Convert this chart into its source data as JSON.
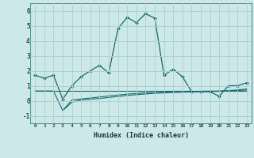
{
  "xlabel": "Humidex (Indice chaleur)",
  "background_color": "#cce8e8",
  "grid_color": "#aad0d0",
  "line_color": "#1a6b6b",
  "xlim": [
    -0.5,
    23.5
  ],
  "ylim": [
    -1.5,
    6.5
  ],
  "yticks": [
    -1,
    0,
    1,
    2,
    3,
    4,
    5,
    6
  ],
  "xticks": [
    0,
    1,
    2,
    3,
    4,
    5,
    6,
    7,
    8,
    9,
    10,
    11,
    12,
    13,
    14,
    15,
    16,
    17,
    18,
    19,
    20,
    21,
    22,
    23
  ],
  "line1_x": [
    0,
    1,
    2,
    3,
    4,
    5,
    6,
    7,
    8,
    9,
    10,
    11,
    12,
    13,
    14,
    15,
    16,
    17,
    18,
    19,
    20,
    21,
    22,
    23
  ],
  "line1_y": [
    1.7,
    1.5,
    1.7,
    0.1,
    1.0,
    1.6,
    2.0,
    2.35,
    1.85,
    4.8,
    5.55,
    5.2,
    5.8,
    5.5,
    1.7,
    2.1,
    1.6,
    0.6,
    0.6,
    0.6,
    0.3,
    1.0,
    1.0,
    1.2
  ],
  "line2_x": [
    0,
    1,
    2,
    3,
    4,
    5,
    6,
    7,
    8,
    9,
    10,
    11,
    12,
    13,
    14,
    15,
    16,
    17,
    18,
    19,
    20,
    21,
    22,
    23
  ],
  "line2_y": [
    0.65,
    0.65,
    0.65,
    0.65,
    0.65,
    0.65,
    0.65,
    0.65,
    0.65,
    0.65,
    0.65,
    0.65,
    0.65,
    0.65,
    0.65,
    0.65,
    0.65,
    0.65,
    0.65,
    0.65,
    0.65,
    0.65,
    0.65,
    0.65
  ],
  "line3_x": [
    3,
    4,
    5,
    6,
    7,
    8,
    9,
    10,
    11,
    12,
    13,
    14,
    15,
    16,
    17,
    18,
    19,
    20,
    21,
    22,
    23
  ],
  "line3_y": [
    -0.65,
    -0.1,
    0.05,
    0.1,
    0.15,
    0.22,
    0.28,
    0.35,
    0.4,
    0.45,
    0.5,
    0.52,
    0.55,
    0.57,
    0.58,
    0.6,
    0.62,
    0.63,
    0.65,
    0.68,
    0.72
  ],
  "line4_x": [
    0,
    1,
    2,
    3,
    4,
    5,
    6,
    7,
    8,
    9,
    10,
    11,
    12,
    13,
    14,
    15,
    16,
    17,
    18,
    19,
    20,
    21,
    22,
    23
  ],
  "line4_y": [
    0.65,
    0.65,
    0.65,
    -0.65,
    0.05,
    0.12,
    0.18,
    0.25,
    0.32,
    0.38,
    0.44,
    0.48,
    0.52,
    0.55,
    0.57,
    0.59,
    0.61,
    0.62,
    0.63,
    0.64,
    0.65,
    0.68,
    0.72,
    0.78
  ]
}
